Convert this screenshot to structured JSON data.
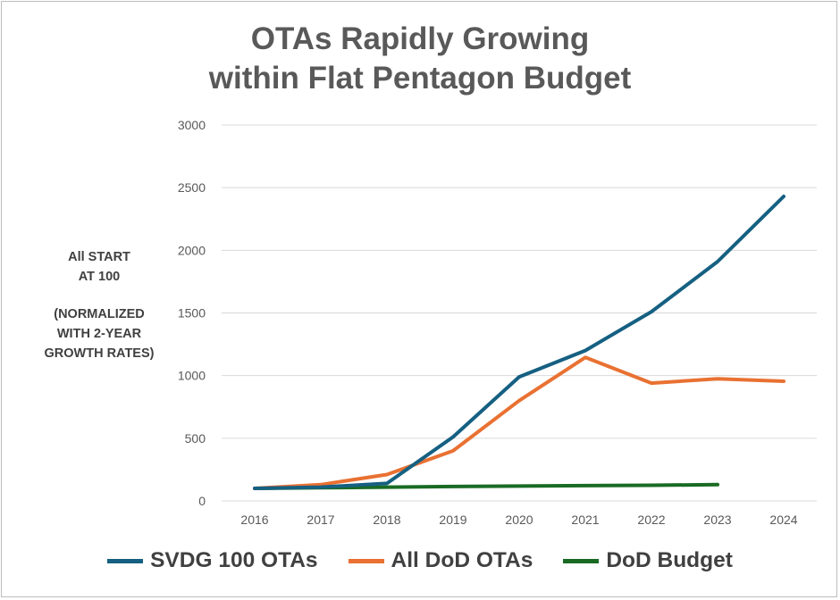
{
  "chart_data": {
    "type": "line",
    "title_lines": [
      "OTAs Rapidly Growing",
      "within Flat Pentagon Budget"
    ],
    "ylabel_lines": [
      "All START",
      "AT 100",
      "",
      "(NORMALIZED",
      "WITH 2-YEAR",
      "GROWTH RATES)"
    ],
    "x": [
      "2016",
      "2017",
      "2018",
      "2019",
      "2020",
      "2021",
      "2022",
      "2023",
      "2024"
    ],
    "y_ticks": [
      "0",
      "500",
      "1000",
      "1500",
      "2000",
      "2500",
      "3000"
    ],
    "ylim": [
      0,
      3000
    ],
    "grid": true,
    "legend_position": "bottom",
    "series": [
      {
        "name": "SVDG 100 OTAs",
        "color": "#156082",
        "values": [
          100,
          110,
          140,
          510,
          990,
          1200,
          1510,
          1910,
          2430
        ]
      },
      {
        "name": "All DoD OTAs",
        "color": "#E97132",
        "values": [
          100,
          130,
          210,
          400,
          800,
          1145,
          940,
          975,
          955
        ]
      },
      {
        "name": "DoD Budget",
        "color": "#196B24",
        "values": [
          100,
          105,
          110,
          115,
          118,
          122,
          125,
          130,
          null
        ]
      }
    ]
  }
}
